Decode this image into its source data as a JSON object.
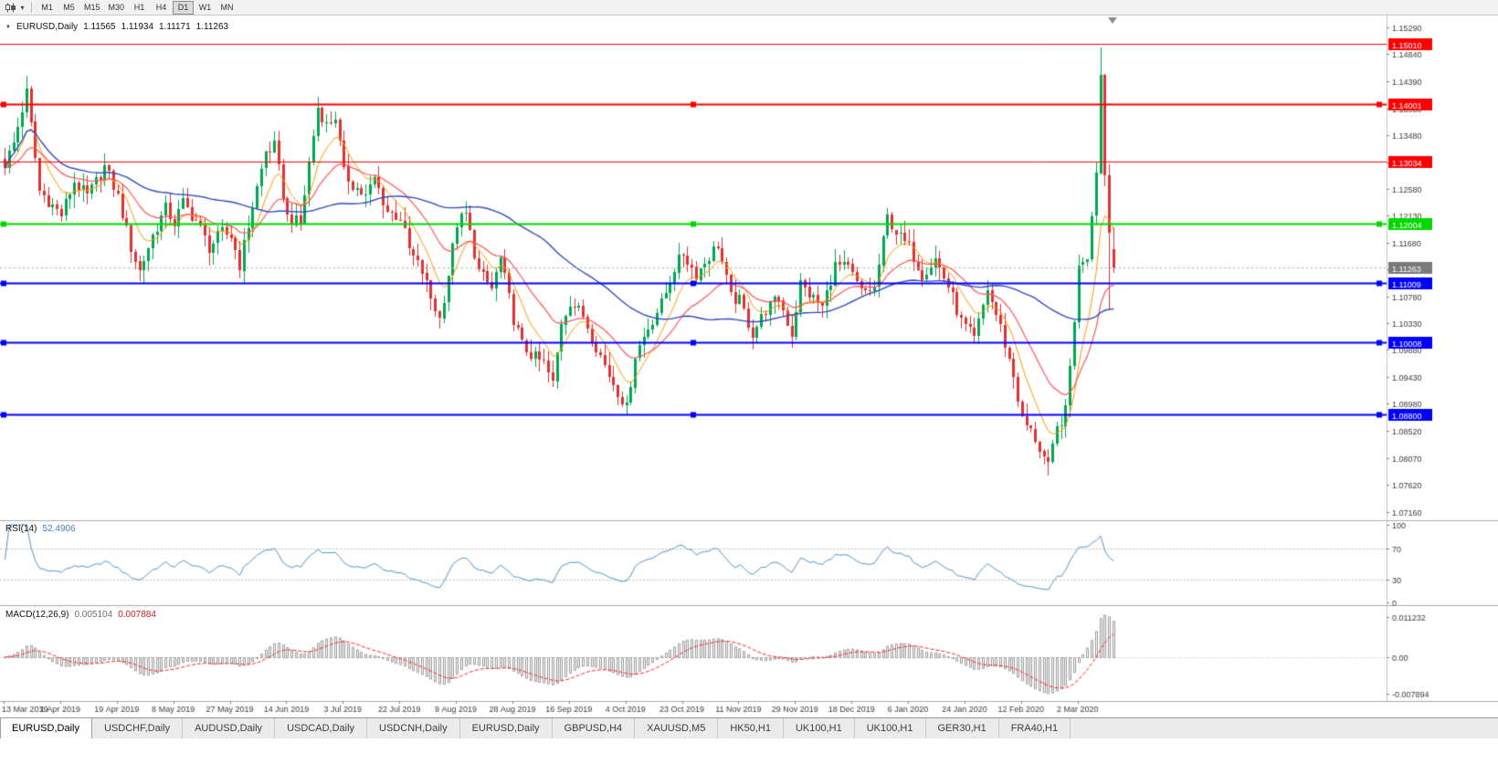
{
  "colors": {
    "bull": "#00A651",
    "bear": "#E03131",
    "ma_fast": "#FF9900",
    "ma_mid": "#FF5555",
    "ma_slow": "#2F4BC0",
    "rsi": "#4F94CD",
    "macd_hist": "#9A9A9A",
    "macd_signal": "#FF2222",
    "axis_text": "#3A3A3A",
    "current_price_bg": "#7A7A7A",
    "separator": "#ABABAB"
  },
  "toolbar": {
    "timeframes": [
      {
        "label": "M1",
        "active": false
      },
      {
        "label": "M5",
        "active": false
      },
      {
        "label": "M15",
        "active": false
      },
      {
        "label": "M30",
        "active": false
      },
      {
        "label": "H1",
        "active": false
      },
      {
        "label": "H4",
        "active": false
      },
      {
        "label": "D1",
        "active": true
      },
      {
        "label": "W1",
        "active": false
      },
      {
        "label": "MN",
        "active": false
      }
    ]
  },
  "header": {
    "symbol": "EURUSD,Daily",
    "open": "1.11565",
    "high": "1.11934",
    "low": "1.11171",
    "close": "1.11263"
  },
  "rsi_panel": {
    "name": "RSI(14)",
    "value": "52.4906"
  },
  "macd_panel": {
    "name": "MACD(12,26,9)",
    "value_main": "0.005104",
    "value_signal": "0.007884"
  },
  "current_price": {
    "label": "1.11263",
    "value": 1.11263
  },
  "levels": [
    {
      "label": "1.15010",
      "value": 1.1501,
      "color": "#FF0000",
      "width": 1,
      "handles": false
    },
    {
      "label": "1.14001",
      "value": 1.14001,
      "color": "#FF0000",
      "width": 2,
      "handles": true
    },
    {
      "label": "1.13034",
      "value": 1.13034,
      "color": "#FF0000",
      "width": 1,
      "handles": false
    },
    {
      "label": "1.12004",
      "value": 1.12004,
      "color": "#00D800",
      "width": 2,
      "handles": true
    },
    {
      "label": "1.11009",
      "value": 1.11009,
      "color": "#0000FF",
      "width": 2,
      "handles": true
    },
    {
      "label": "1.10008",
      "value": 1.10008,
      "color": "#0000FF",
      "width": 2,
      "handles": true
    },
    {
      "label": "1.08800",
      "value": 1.088,
      "color": "#0000FF",
      "width": 2,
      "handles": true
    }
  ],
  "axes": {
    "price_labels": [
      "1.15290",
      "1.14840",
      "1.14390",
      "1.13930",
      "1.13480",
      "1.13030",
      "1.12580",
      "1.12130",
      "1.11680",
      "1.11230",
      "1.10780",
      "1.10330",
      "1.09880",
      "1.09430",
      "1.08980",
      "1.08520",
      "1.08070",
      "1.07620",
      "1.07160"
    ],
    "date_labels": [
      "13 Mar 2019",
      "1 Apr 2019",
      "19 Apr 2019",
      "8 May 2019",
      "27 May 2019",
      "14 Jun 2019",
      "3 Jul 2019",
      "22 Jul 2019",
      "9 Aug 2019",
      "28 Aug 2019",
      "16 Sep 2019",
      "4 Oct 2019",
      "23 Oct 2019",
      "11 Nov 2019",
      "29 Nov 2019",
      "18 Dec 2019",
      "6 Jan 2020",
      "24 Jan 2020",
      "12 Feb 2020",
      "2 Mar 2020"
    ],
    "rsi_labels": [
      "100",
      "70",
      "30",
      "0"
    ],
    "macd_labels": [
      "0.011232",
      "0.00",
      "-0.007894"
    ]
  },
  "tabs": {
    "items": [
      {
        "label": "EURUSD,Daily",
        "active": true
      },
      {
        "label": "USDCHF,Daily",
        "active": false
      },
      {
        "label": "AUDUSD,Daily",
        "active": false
      },
      {
        "label": "USDCAD,Daily",
        "active": false
      },
      {
        "label": "USDCNH,Daily",
        "active": false
      },
      {
        "label": "EURUSD,Daily",
        "active": false
      },
      {
        "label": "GBPUSD,H4",
        "active": false
      },
      {
        "label": "XAUUSD,M5",
        "active": false
      },
      {
        "label": "HK50,H1",
        "active": false
      },
      {
        "label": "UK100,H1",
        "active": false
      },
      {
        "label": "UK100,H1",
        "active": false
      },
      {
        "label": "GER30,H1",
        "active": false
      },
      {
        "label": "FRA40,H1",
        "active": false
      }
    ]
  },
  "chart_data": {
    "type": "candlestick",
    "symbol": "EURUSD",
    "period": "Daily",
    "count": 256,
    "candles_per_date_label": 13,
    "price_scale_top": 1.1529,
    "price_scale_bottom": 1.0716,
    "noise_amplitude": 0.0011,
    "wick_amplitude": 0.0022,
    "noise_freeze_from": 246,
    "close_anchors": [
      [
        0,
        1.13
      ],
      [
        2,
        1.1335
      ],
      [
        5,
        1.142
      ],
      [
        8,
        1.1255
      ],
      [
        11,
        1.123
      ],
      [
        13,
        1.1215
      ],
      [
        16,
        1.127
      ],
      [
        19,
        1.1245
      ],
      [
        23,
        1.1295
      ],
      [
        26,
        1.1245
      ],
      [
        29,
        1.116
      ],
      [
        31,
        1.112
      ],
      [
        34,
        1.118
      ],
      [
        37,
        1.1225
      ],
      [
        39,
        1.12
      ],
      [
        41,
        1.1235
      ],
      [
        44,
        1.1205
      ],
      [
        47,
        1.116
      ],
      [
        50,
        1.1185
      ],
      [
        52,
        1.118
      ],
      [
        54,
        1.113
      ],
      [
        57,
        1.123
      ],
      [
        60,
        1.132
      ],
      [
        62,
        1.133
      ],
      [
        65,
        1.121
      ],
      [
        68,
        1.12
      ],
      [
        70,
        1.13
      ],
      [
        72,
        1.1395
      ],
      [
        74,
        1.1365
      ],
      [
        76,
        1.138
      ],
      [
        78,
        1.1285
      ],
      [
        80,
        1.1265
      ],
      [
        83,
        1.1245
      ],
      [
        85,
        1.1275
      ],
      [
        88,
        1.122
      ],
      [
        91,
        1.121
      ],
      [
        93,
        1.1155
      ],
      [
        96,
        1.112
      ],
      [
        98,
        1.1075
      ],
      [
        100,
        1.104
      ],
      [
        102,
        1.1115
      ],
      [
        104,
        1.12
      ],
      [
        106,
        1.1215
      ],
      [
        109,
        1.112
      ],
      [
        112,
        1.109
      ],
      [
        114,
        1.114
      ],
      [
        117,
        1.104
      ],
      [
        119,
        1.0995
      ],
      [
        122,
        1.0975
      ],
      [
        124,
        1.0965
      ],
      [
        126,
        1.093
      ],
      [
        128,
        1.1035
      ],
      [
        130,
        1.107
      ],
      [
        133,
        1.1045
      ],
      [
        136,
        1.0995
      ],
      [
        139,
        1.0945
      ],
      [
        142,
        1.0905
      ],
      [
        143,
        1.089
      ],
      [
        145,
        1.098
      ],
      [
        148,
        1.1025
      ],
      [
        151,
        1.1065
      ],
      [
        154,
        1.1125
      ],
      [
        156,
        1.115
      ],
      [
        159,
        1.1115
      ],
      [
        162,
        1.1145
      ],
      [
        164,
        1.1165
      ],
      [
        167,
        1.1075
      ],
      [
        169,
        1.107
      ],
      [
        172,
        1.1015
      ],
      [
        175,
        1.1055
      ],
      [
        178,
        1.1075
      ],
      [
        181,
        1.1015
      ],
      [
        183,
        1.11
      ],
      [
        185,
        1.108
      ],
      [
        188,
        1.106
      ],
      [
        191,
        1.113
      ],
      [
        194,
        1.1125
      ],
      [
        197,
        1.1085
      ],
      [
        200,
        1.109
      ],
      [
        203,
        1.121
      ],
      [
        206,
        1.1175
      ],
      [
        208,
        1.116
      ],
      [
        211,
        1.1115
      ],
      [
        214,
        1.114
      ],
      [
        217,
        1.1095
      ],
      [
        220,
        1.1035
      ],
      [
        223,
        1.1005
      ],
      [
        226,
        1.109
      ],
      [
        229,
        1.1025
      ],
      [
        232,
        1.0945
      ],
      [
        234,
        1.087
      ],
      [
        237,
        1.084
      ],
      [
        240,
        1.079
      ],
      [
        242,
        1.0855
      ],
      [
        244,
        1.0885
      ],
      [
        246,
        1.1035
      ],
      [
        247,
        1.113
      ],
      [
        249,
        1.114
      ],
      [
        251,
        1.1285
      ],
      [
        252,
        1.145
      ],
      [
        253,
        1.1281
      ],
      [
        254,
        1.1185
      ],
      [
        255,
        1.11263
      ]
    ],
    "special": {
      "5": {
        "high": 1.1448
      },
      "72": {
        "high": 1.1412
      },
      "126": {
        "low": 1.0926
      },
      "143": {
        "low": 1.0879
      },
      "240": {
        "low": 1.0778
      },
      "252": {
        "high": 1.1495
      },
      "254": {
        "low": 1.1055
      },
      "255": {
        "open": 1.11565,
        "high": 1.11934,
        "low": 1.11171,
        "close": 1.11263
      }
    },
    "last_candle": {
      "open": 1.11565,
      "high": 1.11934,
      "low": 1.11171,
      "close": 1.11263
    },
    "overlays": [
      {
        "name": "fast MA",
        "type": "ema",
        "period": 8,
        "color": "#FF9900"
      },
      {
        "name": "medium MA",
        "type": "ema",
        "period": 21,
        "color": "#FF5555"
      },
      {
        "name": "slow MA",
        "type": "sma",
        "period": 55,
        "color": "#2F4BC0"
      }
    ],
    "indicators": [
      {
        "name": "RSI",
        "period": 14,
        "current": 52.4906,
        "range": [
          0,
          100
        ],
        "guides": [
          30,
          70
        ]
      },
      {
        "name": "MACD",
        "fast": 12,
        "slow": 26,
        "signal": 9,
        "current_main": 0.005104,
        "current_signal": 0.007884,
        "scale_max": 0.011232,
        "scale_min": -0.007894
      }
    ],
    "horizontal_levels": [
      1.1501,
      1.14001,
      1.13034,
      1.12004,
      1.11009,
      1.10008,
      1.088
    ]
  }
}
